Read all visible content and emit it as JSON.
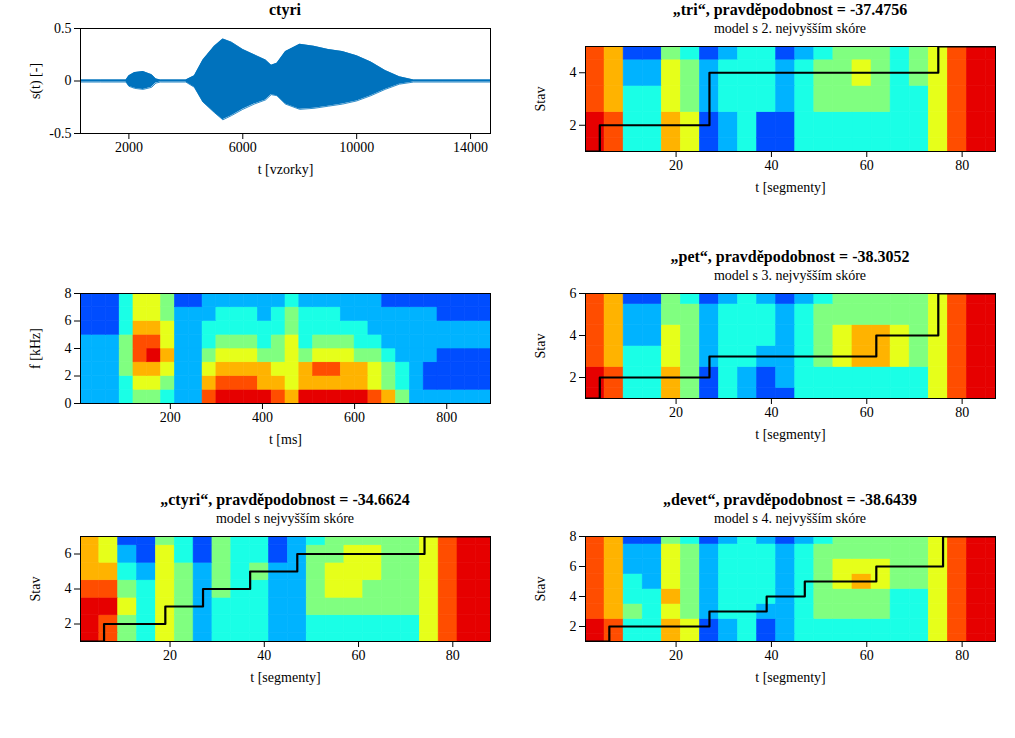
{
  "chart_data": [
    {
      "type": "line",
      "title": "ctyri",
      "x_label": "t [vzorky]",
      "y_label": "s(t) [-]",
      "xlim": [
        300,
        14700
      ],
      "ylim": [
        -0.5,
        0.5
      ],
      "xticks": [
        2000,
        6000,
        10000,
        14000
      ],
      "yticks": [
        -0.5,
        0,
        0.5
      ],
      "color": "#0072bd",
      "x": [
        300,
        1000,
        1900,
        2000,
        2200,
        2500,
        2800,
        2950,
        3100,
        4000,
        4300,
        4600,
        5000,
        5300,
        5600,
        6000,
        6400,
        6800,
        7000,
        7200,
        7500,
        8000,
        8500,
        9000,
        9500,
        10000,
        10500,
        11000,
        11500,
        12000,
        13000,
        14700
      ],
      "values_high": [
        0.01,
        0.01,
        0.01,
        0.05,
        0.08,
        0.09,
        0.06,
        0.02,
        0.01,
        0.01,
        0.05,
        0.2,
        0.33,
        0.4,
        0.37,
        0.3,
        0.25,
        0.2,
        0.15,
        0.17,
        0.28,
        0.35,
        0.33,
        0.3,
        0.28,
        0.24,
        0.18,
        0.1,
        0.04,
        0.01,
        0.01,
        0.01
      ],
      "values_low": [
        -0.01,
        -0.01,
        -0.01,
        -0.05,
        -0.07,
        -0.08,
        -0.06,
        -0.02,
        -0.01,
        -0.01,
        -0.06,
        -0.2,
        -0.3,
        -0.37,
        -0.33,
        -0.27,
        -0.22,
        -0.18,
        -0.13,
        -0.14,
        -0.22,
        -0.27,
        -0.26,
        -0.24,
        -0.22,
        -0.19,
        -0.14,
        -0.08,
        -0.03,
        -0.01,
        -0.01,
        -0.01
      ]
    },
    {
      "type": "heatmap",
      "x_label": "t [ms]",
      "y_label": "f [kHz]",
      "xlim": [
        5,
        895
      ],
      "ylim": [
        0,
        8
      ],
      "xticks": [
        200,
        400,
        600,
        800
      ],
      "yticks": [
        0,
        2,
        4,
        6,
        8
      ],
      "color_range": [
        0,
        10
      ],
      "t_edges": [
        0,
        30,
        60,
        90,
        120,
        150,
        180,
        210,
        240,
        270,
        300,
        330,
        360,
        390,
        420,
        450,
        480,
        510,
        540,
        570,
        600,
        630,
        660,
        690,
        720,
        750,
        780,
        810,
        840,
        870,
        900
      ],
      "f_edges": [
        0,
        1,
        2,
        3,
        4,
        5,
        6,
        7,
        8
      ],
      "cells": [
        [
          3,
          3,
          3,
          4,
          5,
          5,
          4,
          3,
          3,
          8,
          9,
          9,
          9,
          9,
          8,
          7,
          9,
          9,
          9,
          9,
          9,
          8,
          7,
          5,
          3,
          3,
          3,
          3,
          3,
          3
        ],
        [
          3,
          3,
          3,
          4,
          6,
          6,
          5,
          3,
          3,
          7,
          8,
          8,
          8,
          7,
          7,
          6,
          7,
          7,
          7,
          7,
          7,
          6,
          5,
          4,
          3,
          2,
          2,
          2,
          2,
          2
        ],
        [
          3,
          3,
          3,
          5,
          7,
          7,
          6,
          3,
          3,
          6,
          7,
          7,
          7,
          7,
          6,
          6,
          7,
          8,
          8,
          7,
          7,
          6,
          5,
          4,
          3,
          2,
          2,
          2,
          2,
          2
        ],
        [
          3,
          3,
          3,
          5,
          8,
          9,
          7,
          3,
          3,
          5,
          6,
          6,
          6,
          5,
          5,
          6,
          5,
          6,
          6,
          6,
          5,
          5,
          4,
          3,
          3,
          3,
          2,
          2,
          2,
          2
        ],
        [
          3,
          3,
          3,
          5,
          8,
          8,
          6,
          3,
          3,
          4,
          5,
          5,
          5,
          4,
          5,
          6,
          4,
          5,
          5,
          5,
          4,
          4,
          3,
          3,
          3,
          3,
          3,
          3,
          3,
          3
        ],
        [
          2,
          2,
          2,
          4,
          7,
          7,
          6,
          3,
          3,
          4,
          4,
          4,
          4,
          4,
          4,
          5,
          4,
          4,
          4,
          4,
          4,
          3,
          3,
          3,
          3,
          3,
          3,
          3,
          3,
          3
        ],
        [
          2,
          2,
          2,
          4,
          6,
          6,
          5,
          3,
          3,
          3,
          4,
          4,
          4,
          3,
          4,
          5,
          4,
          4,
          4,
          3,
          3,
          3,
          3,
          3,
          3,
          3,
          2,
          2,
          2,
          2
        ],
        [
          2,
          2,
          2,
          4,
          6,
          6,
          5,
          2,
          2,
          3,
          3,
          3,
          3,
          3,
          3,
          4,
          3,
          3,
          3,
          3,
          3,
          3,
          2,
          2,
          2,
          2,
          2,
          2,
          2,
          2
        ]
      ]
    },
    {
      "type": "heatmap",
      "title": "„ctyri“, pravděpodobnost = -34.6624",
      "subtitle": "model s nejvyšším skóre",
      "x_label": "t [segmenty]",
      "y_label": "Stav",
      "xlim": [
        1,
        88
      ],
      "ylim": [
        1,
        7
      ],
      "xticks": [
        20,
        40,
        60,
        80
      ],
      "yticks": [
        2,
        4,
        6
      ],
      "color_range": [
        0,
        10
      ],
      "color": "#000000",
      "t_edges": [
        1,
        5,
        9,
        13,
        17,
        21,
        25,
        29,
        33,
        37,
        41,
        45,
        49,
        53,
        57,
        61,
        65,
        69,
        73,
        77,
        81,
        85,
        89
      ],
      "state_edges": [
        0.5,
        1.5,
        2.5,
        3.5,
        4.5,
        5.5,
        6.5,
        7.5
      ],
      "cells": [
        [
          9,
          8,
          5,
          4,
          6,
          5,
          3,
          4,
          4,
          4,
          3,
          3,
          4,
          4,
          4,
          4,
          4,
          4,
          6,
          8,
          9,
          9
        ],
        [
          9,
          8,
          5,
          4,
          6,
          5,
          3,
          4,
          4,
          4,
          3,
          3,
          4,
          4,
          4,
          4,
          4,
          4,
          6,
          8,
          9,
          9
        ],
        [
          9,
          9,
          6,
          4,
          6,
          5,
          3,
          4,
          4,
          4,
          3,
          3,
          5,
          5,
          5,
          5,
          5,
          5,
          6,
          8,
          9,
          9
        ],
        [
          8,
          8,
          5,
          4,
          6,
          5,
          3,
          5,
          4,
          4,
          3,
          3,
          5,
          6,
          6,
          5,
          5,
          5,
          6,
          8,
          9,
          9
        ],
        [
          7,
          7,
          4,
          3,
          6,
          5,
          3,
          5,
          4,
          5,
          3,
          3,
          5,
          6,
          6,
          6,
          5,
          5,
          6,
          8,
          9,
          9
        ],
        [
          7,
          6,
          3,
          2,
          6,
          4,
          2,
          5,
          4,
          4,
          2,
          3,
          5,
          5,
          6,
          6,
          5,
          5,
          6,
          8,
          9,
          9
        ],
        [
          7,
          6,
          2,
          2,
          5,
          4,
          2,
          5,
          4,
          4,
          2,
          3,
          4,
          5,
          5,
          5,
          5,
          5,
          6,
          8,
          9,
          9
        ]
      ],
      "path_t": [
        1,
        6,
        19,
        27,
        37,
        47,
        74,
        88
      ],
      "path_state": [
        1,
        2,
        3,
        4,
        5,
        6,
        7,
        7
      ]
    },
    {
      "type": "heatmap",
      "title": "„tri“, pravděpodobnost = -37.4756",
      "subtitle": "model s 2. nejvyšším skóre",
      "x_label": "t [segmenty]",
      "y_label": "Stav",
      "xlim": [
        1,
        87
      ],
      "ylim": [
        1,
        5
      ],
      "xticks": [
        20,
        40,
        60,
        80
      ],
      "yticks": [
        2,
        4
      ],
      "color_range": [
        0,
        10
      ],
      "color": "#000000",
      "t_edges": [
        1,
        5,
        9,
        13,
        17,
        21,
        25,
        29,
        33,
        37,
        41,
        45,
        49,
        53,
        57,
        61,
        65,
        69,
        73,
        77,
        81,
        85,
        89
      ],
      "state_edges": [
        0.5,
        1.5,
        2.5,
        3.5,
        4.5,
        5.5
      ],
      "cells": [
        [
          9,
          8,
          4,
          4,
          7,
          6,
          2,
          3,
          4,
          2,
          2,
          4,
          4,
          4,
          4,
          4,
          4,
          4,
          6,
          8,
          9,
          9
        ],
        [
          9,
          8,
          4,
          4,
          7,
          6,
          2,
          3,
          4,
          2,
          2,
          4,
          4,
          4,
          4,
          4,
          4,
          4,
          6,
          8,
          9,
          9
        ],
        [
          8,
          7,
          4,
          4,
          6,
          5,
          3,
          4,
          4,
          4,
          3,
          4,
          5,
          5,
          5,
          5,
          4,
          4,
          6,
          8,
          9,
          9
        ],
        [
          8,
          7,
          3,
          3,
          6,
          5,
          3,
          4,
          4,
          4,
          3,
          4,
          5,
          5,
          6,
          5,
          4,
          5,
          6,
          8,
          9,
          9
        ],
        [
          8,
          7,
          2,
          2,
          5,
          4,
          2,
          3,
          4,
          4,
          2,
          3,
          4,
          5,
          5,
          5,
          4,
          5,
          6,
          8,
          9,
          9
        ]
      ],
      "path_t": [
        1,
        4,
        27,
        75,
        87
      ],
      "path_state": [
        1,
        2,
        4,
        5,
        5
      ]
    },
    {
      "type": "heatmap",
      "title": "„pet“, pravděpodobnost = -38.3052",
      "subtitle": "model s 3. nejvyšším skóre",
      "x_label": "t [segmenty]",
      "y_label": "Stav",
      "xlim": [
        1,
        87
      ],
      "ylim": [
        1,
        6
      ],
      "xticks": [
        20,
        40,
        60,
        80
      ],
      "yticks": [
        2,
        4,
        6
      ],
      "color_range": [
        0,
        10
      ],
      "color": "#000000",
      "t_edges": [
        1,
        5,
        9,
        13,
        17,
        21,
        25,
        29,
        33,
        37,
        41,
        45,
        49,
        53,
        57,
        61,
        65,
        69,
        73,
        77,
        81,
        85,
        89
      ],
      "state_edges": [
        0.5,
        1.5,
        2.5,
        3.5,
        4.5,
        5.5,
        6.5
      ],
      "cells": [
        [
          9,
          8,
          4,
          4,
          7,
          5,
          2,
          4,
          3,
          2,
          2,
          4,
          4,
          4,
          4,
          4,
          4,
          4,
          6,
          8,
          9,
          9
        ],
        [
          9,
          8,
          4,
          4,
          7,
          5,
          2,
          4,
          3,
          2,
          3,
          4,
          4,
          4,
          4,
          4,
          4,
          4,
          6,
          8,
          9,
          9
        ],
        [
          8,
          7,
          4,
          4,
          6,
          5,
          3,
          4,
          4,
          3,
          3,
          4,
          5,
          6,
          7,
          7,
          6,
          5,
          6,
          8,
          9,
          9
        ],
        [
          8,
          7,
          3,
          3,
          6,
          5,
          3,
          4,
          4,
          4,
          3,
          4,
          5,
          6,
          7,
          7,
          6,
          5,
          6,
          8,
          9,
          9
        ],
        [
          8,
          7,
          3,
          3,
          5,
          5,
          3,
          4,
          4,
          4,
          3,
          4,
          5,
          5,
          5,
          5,
          5,
          5,
          6,
          8,
          9,
          9
        ],
        [
          8,
          7,
          2,
          2,
          5,
          4,
          2,
          3,
          4,
          3,
          2,
          3,
          4,
          5,
          5,
          5,
          5,
          5,
          6,
          8,
          9,
          9
        ]
      ],
      "path_t": [
        1,
        4,
        27,
        62,
        75,
        87
      ],
      "path_state": [
        1,
        2,
        3,
        4,
        6,
        6
      ]
    },
    {
      "type": "heatmap",
      "title": "„devet“, pravděpodobnost = -38.6439",
      "subtitle": "model s 4. nejvyšším skóre",
      "x_label": "t [segmenty]",
      "y_label": "Stav",
      "xlim": [
        1,
        87
      ],
      "ylim": [
        1,
        8
      ],
      "xticks": [
        20,
        40,
        60,
        80
      ],
      "yticks": [
        2,
        4,
        6,
        8
      ],
      "color_range": [
        0,
        10
      ],
      "color": "#000000",
      "t_edges": [
        1,
        5,
        9,
        13,
        17,
        21,
        25,
        29,
        33,
        37,
        41,
        45,
        49,
        53,
        57,
        61,
        65,
        69,
        73,
        77,
        81,
        85,
        89
      ],
      "state_edges": [
        0.5,
        1.5,
        2.5,
        3.5,
        4.5,
        5.5,
        6.5,
        7.5,
        8.5
      ],
      "cells": [
        [
          9,
          8,
          4,
          4,
          7,
          6,
          2,
          3,
          4,
          2,
          3,
          4,
          4,
          4,
          4,
          4,
          4,
          4,
          6,
          8,
          9,
          9
        ],
        [
          9,
          8,
          4,
          4,
          7,
          6,
          2,
          3,
          4,
          2,
          3,
          4,
          4,
          4,
          4,
          4,
          4,
          4,
          6,
          8,
          9,
          9
        ],
        [
          8,
          7,
          5,
          4,
          6,
          5,
          3,
          4,
          4,
          3,
          3,
          4,
          5,
          5,
          5,
          5,
          4,
          4,
          6,
          8,
          9,
          9
        ],
        [
          8,
          7,
          4,
          4,
          7,
          5,
          3,
          4,
          4,
          4,
          3,
          4,
          5,
          5,
          5,
          5,
          4,
          4,
          6,
          8,
          9,
          9
        ],
        [
          8,
          7,
          4,
          3,
          6,
          5,
          3,
          4,
          4,
          4,
          3,
          4,
          5,
          6,
          7,
          6,
          5,
          5,
          6,
          8,
          9,
          9
        ],
        [
          8,
          7,
          3,
          3,
          6,
          5,
          3,
          4,
          4,
          4,
          3,
          4,
          5,
          6,
          6,
          6,
          5,
          5,
          6,
          8,
          9,
          9
        ],
        [
          8,
          7,
          3,
          3,
          6,
          5,
          3,
          4,
          4,
          4,
          3,
          4,
          5,
          5,
          5,
          5,
          5,
          5,
          6,
          8,
          9,
          9
        ],
        [
          8,
          7,
          2,
          2,
          5,
          4,
          2,
          3,
          4,
          3,
          2,
          3,
          4,
          5,
          5,
          5,
          5,
          5,
          6,
          8,
          9,
          9
        ]
      ],
      "path_t": [
        1,
        6,
        27,
        39,
        47,
        62,
        76,
        87
      ],
      "path_state": [
        1,
        2,
        3,
        4,
        5,
        6,
        8,
        8
      ]
    }
  ]
}
